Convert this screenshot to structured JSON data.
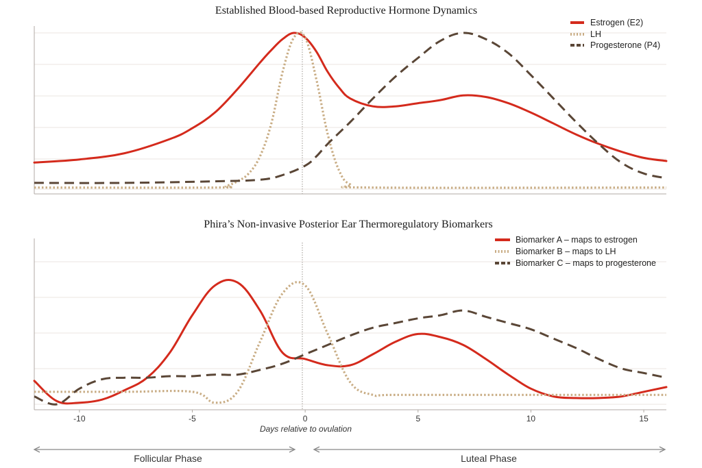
{
  "colors": {
    "estrogen": "#d42a1c",
    "lh": "#c9ad85",
    "progesterone": "#5a4636",
    "grid": "#ebe6e1",
    "axis": "#b0aaa4",
    "ovulation_line": "#9a948e",
    "phase_arrow": "#888888"
  },
  "chart_data": [
    {
      "type": "line",
      "title": "Established Blood-based Reproductive Hormone Dynamics",
      "xlabel": "",
      "ylabel": "",
      "xlim": [
        -12,
        16
      ],
      "ylim": [
        0,
        1.05
      ],
      "grid": true,
      "legend_position": "top-right",
      "series": [
        {
          "name": "Estrogen (E2)",
          "color_key": "estrogen",
          "style": "solid",
          "x": [
            -12,
            -10,
            -8,
            -6,
            -5,
            -4,
            -3,
            -2,
            -1.5,
            -1,
            -0.5,
            0,
            0.5,
            1,
            1.5,
            2,
            3,
            4,
            5,
            6,
            7,
            8,
            9,
            10,
            11,
            12,
            13,
            14,
            15,
            16
          ],
          "y": [
            0.17,
            0.19,
            0.23,
            0.32,
            0.39,
            0.49,
            0.64,
            0.81,
            0.89,
            0.96,
            1.0,
            0.97,
            0.88,
            0.75,
            0.65,
            0.58,
            0.53,
            0.53,
            0.55,
            0.57,
            0.6,
            0.59,
            0.55,
            0.49,
            0.42,
            0.35,
            0.29,
            0.24,
            0.2,
            0.18
          ]
        },
        {
          "name": "LH",
          "color_key": "lh",
          "style": "dotted",
          "x": [
            -12,
            -4,
            -3.5,
            -3,
            -2.5,
            -2,
            -1.5,
            -1,
            -0.5,
            0,
            0.5,
            1,
            1.5,
            2,
            3,
            16
          ],
          "y": [
            0.01,
            0.01,
            0.02,
            0.05,
            0.1,
            0.21,
            0.42,
            0.75,
            0.97,
            0.97,
            0.7,
            0.35,
            0.12,
            0.03,
            0.01,
            0.01
          ]
        },
        {
          "name": "Progesterone (P4)",
          "color_key": "progesterone",
          "style": "dashed",
          "x": [
            -12,
            -8,
            -4,
            -2,
            -1,
            0,
            0.5,
            1,
            2,
            3,
            4,
            5,
            6,
            7,
            8,
            9,
            10,
            11,
            12,
            13,
            14,
            15,
            16
          ],
          "y": [
            0.04,
            0.04,
            0.05,
            0.06,
            0.09,
            0.15,
            0.21,
            0.29,
            0.43,
            0.58,
            0.72,
            0.84,
            0.95,
            1.0,
            0.96,
            0.87,
            0.73,
            0.58,
            0.43,
            0.29,
            0.17,
            0.1,
            0.07
          ]
        }
      ]
    },
    {
      "type": "line",
      "title": "Phira’s Non-invasive Posterior Ear Thermoregulatory Biomarkers",
      "xlabel": "Days relative to ovulation",
      "ylabel": "",
      "xlim": [
        -12,
        16
      ],
      "ylim": [
        0,
        1.05
      ],
      "xticks": [
        -10,
        -5,
        0,
        5,
        10,
        15
      ],
      "grid": true,
      "legend_position": "top-right",
      "series": [
        {
          "name": "Biomarker A – maps to estrogen",
          "color_key": "estrogen",
          "style": "solid",
          "x": [
            -12,
            -11,
            -10,
            -9,
            -8,
            -7,
            -6,
            -5,
            -4,
            -3,
            -2,
            -1,
            0,
            1,
            2,
            3,
            4,
            5,
            6,
            7,
            8,
            9,
            10,
            11,
            12,
            13,
            14,
            15,
            16
          ],
          "y": [
            0.15,
            0.02,
            0.01,
            0.03,
            0.09,
            0.17,
            0.33,
            0.57,
            0.76,
            0.78,
            0.6,
            0.33,
            0.29,
            0.25,
            0.25,
            0.32,
            0.4,
            0.45,
            0.43,
            0.38,
            0.29,
            0.19,
            0.1,
            0.05,
            0.04,
            0.04,
            0.05,
            0.08,
            0.11
          ]
        },
        {
          "name": "Biomarker B – maps to LH",
          "color_key": "lh",
          "style": "dotted",
          "x": [
            -12,
            -8,
            -5,
            -4,
            -3,
            -2,
            -1,
            0,
            1,
            2,
            3,
            4,
            10,
            16
          ],
          "y": [
            0.08,
            0.08,
            0.08,
            0.01,
            0.08,
            0.4,
            0.71,
            0.76,
            0.45,
            0.14,
            0.06,
            0.06,
            0.06,
            0.06
          ]
        },
        {
          "name": "Biomarker C – maps to progesterone",
          "color_key": "progesterone",
          "style": "dashed",
          "x": [
            -12,
            -11,
            -10,
            -9,
            -8,
            -7,
            -6,
            -5,
            -4,
            -3,
            -2,
            -1,
            0,
            1,
            2,
            3,
            4,
            5,
            6,
            7,
            8,
            9,
            10,
            11,
            12,
            13,
            14,
            15,
            16
          ],
          "y": [
            0.05,
            0.0,
            0.1,
            0.16,
            0.17,
            0.17,
            0.18,
            0.18,
            0.19,
            0.19,
            0.22,
            0.26,
            0.32,
            0.38,
            0.44,
            0.49,
            0.52,
            0.55,
            0.57,
            0.6,
            0.56,
            0.52,
            0.48,
            0.42,
            0.36,
            0.29,
            0.23,
            0.2,
            0.17
          ]
        }
      ]
    }
  ],
  "phases": {
    "follicular": "Follicular Phase",
    "luteal": "Luteal Phase"
  }
}
